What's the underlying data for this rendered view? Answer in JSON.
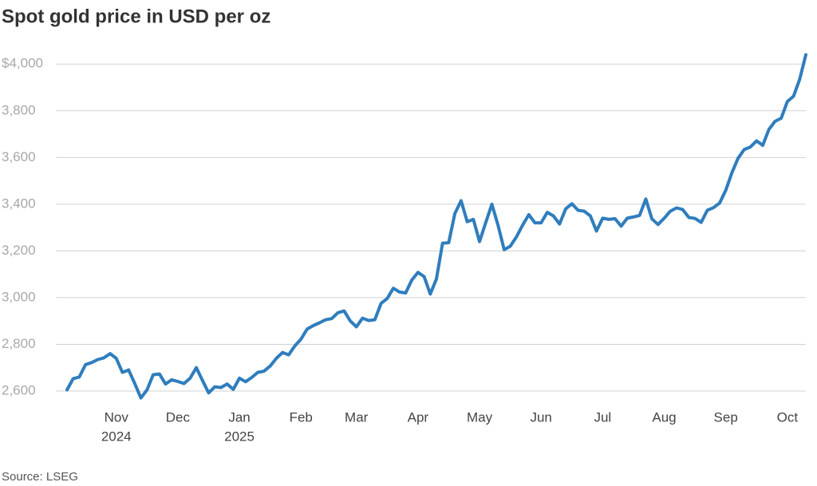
{
  "chart_data": {
    "type": "line",
    "title": "Spot gold price in USD per oz",
    "source": "Source: LSEG",
    "categories": [
      null,
      null,
      null,
      null,
      null,
      null,
      null,
      null,
      [
        "Nov",
        "2024"
      ],
      null,
      null,
      null,
      null,
      null,
      null,
      null,
      null,
      null,
      [
        "Dec"
      ],
      null,
      null,
      null,
      null,
      null,
      null,
      null,
      null,
      null,
      [
        "Jan",
        "2025"
      ],
      null,
      null,
      null,
      null,
      null,
      null,
      null,
      null,
      null,
      [
        "Feb"
      ],
      null,
      null,
      null,
      null,
      null,
      null,
      null,
      null,
      [
        "Mar"
      ],
      null,
      null,
      null,
      null,
      null,
      null,
      null,
      null,
      null,
      [
        "Apr"
      ],
      null,
      null,
      null,
      null,
      null,
      null,
      null,
      null,
      null,
      [
        "May"
      ],
      null,
      null,
      null,
      null,
      null,
      null,
      null,
      null,
      null,
      [
        "Jun"
      ],
      null,
      null,
      null,
      null,
      null,
      null,
      null,
      null,
      null,
      [
        "Jul"
      ],
      null,
      null,
      null,
      null,
      null,
      null,
      null,
      null,
      null,
      [
        "Aug"
      ],
      null,
      null,
      null,
      null,
      null,
      null,
      null,
      null,
      null,
      [
        "Sep"
      ],
      null,
      null,
      null,
      null,
      null,
      null,
      null,
      null,
      null,
      [
        "Oct"
      ],
      null,
      null,
      null
    ],
    "series": [
      {
        "name": "Spot gold",
        "color": "#2f7dbd",
        "values": [
          2605,
          2653,
          2660,
          2713,
          2722,
          2735,
          2742,
          2760,
          2740,
          2680,
          2690,
          2632,
          2570,
          2605,
          2670,
          2673,
          2630,
          2648,
          2641,
          2632,
          2655,
          2700,
          2645,
          2592,
          2618,
          2615,
          2630,
          2607,
          2655,
          2640,
          2658,
          2680,
          2685,
          2707,
          2740,
          2765,
          2755,
          2793,
          2822,
          2865,
          2880,
          2892,
          2905,
          2910,
          2935,
          2943,
          2900,
          2875,
          2912,
          2902,
          2905,
          2975,
          2996,
          3040,
          3024,
          3020,
          3075,
          3108,
          3090,
          3015,
          3080,
          3233,
          3235,
          3360,
          3415,
          3325,
          3335,
          3240,
          3320,
          3400,
          3310,
          3205,
          3220,
          3260,
          3310,
          3355,
          3320,
          3320,
          3365,
          3350,
          3315,
          3380,
          3402,
          3374,
          3370,
          3350,
          3285,
          3340,
          3335,
          3338,
          3306,
          3340,
          3345,
          3352,
          3422,
          3337,
          3313,
          3340,
          3370,
          3384,
          3377,
          3343,
          3339,
          3322,
          3374,
          3385,
          3405,
          3460,
          3535,
          3597,
          3634,
          3645,
          3671,
          3652,
          3720,
          3755,
          3768,
          3840,
          3862,
          3935,
          4040
        ]
      }
    ],
    "ylim": [
      2550,
      4100
    ],
    "yticks": [
      {
        "value": 2600,
        "label": "2,600"
      },
      {
        "value": 2800,
        "label": "2,800"
      },
      {
        "value": 3000,
        "label": "3,000"
      },
      {
        "value": 3200,
        "label": "3,200"
      },
      {
        "value": 3400,
        "label": "3,400"
      },
      {
        "value": 3600,
        "label": "3,600"
      },
      {
        "value": 3800,
        "label": "3,800"
      },
      {
        "value": 4000,
        "label": "$4,000"
      }
    ],
    "grid": true
  }
}
